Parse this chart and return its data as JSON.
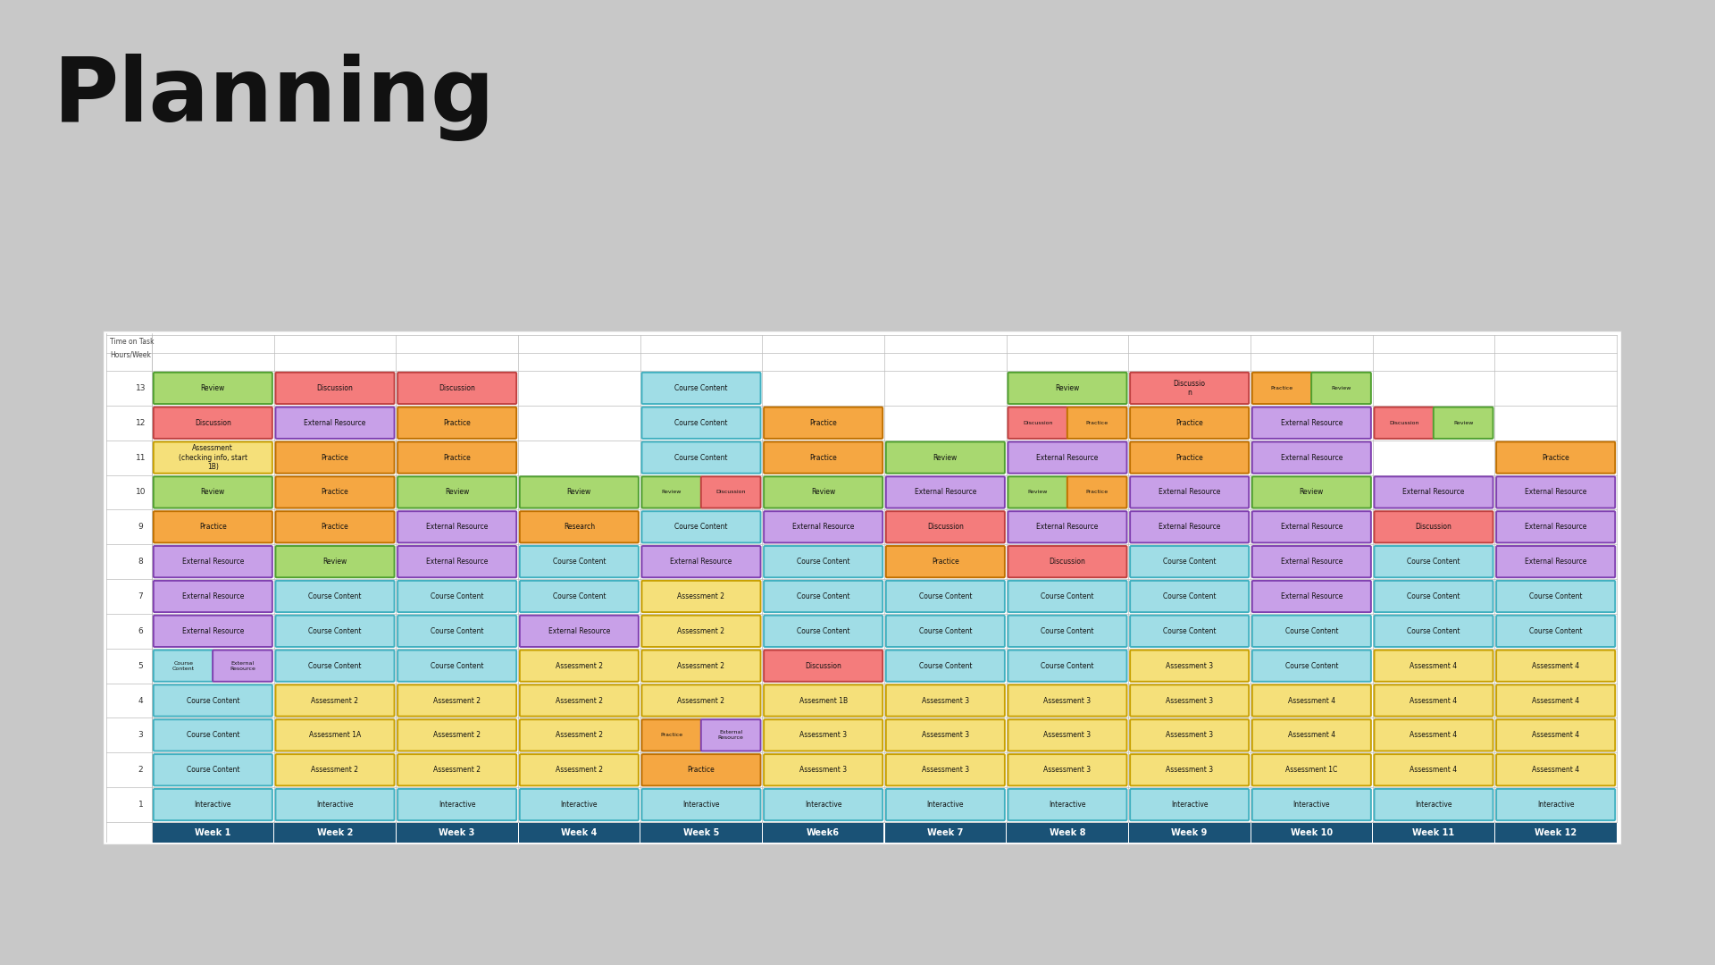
{
  "title": "Planning",
  "bg_color": "#c8c8c8",
  "card_color": "#ffffff",
  "weeks": [
    "Week 1",
    "Week 2",
    "Week 3",
    "Week 4",
    "Week 5",
    "Week6",
    "Week 7",
    "Week 8",
    "Week 9",
    "Week 10",
    "Week 11",
    "Week 12"
  ],
  "header_color": "#1a5276",
  "row_header_labels": [
    "Time on Task",
    "Hours/Week"
  ],
  "type_fill": {
    "Course Content": "#a0dde6",
    "Assessment": "#f5e07a",
    "Practice": "#f5a742",
    "Discussion": "#f47c7c",
    "Review": "#a8d870",
    "External Resource": "#c8a0e8",
    "Interactive": "#a0dde6",
    "Research": "#f5a742"
  },
  "type_edge": {
    "Course Content": "#40b0c0",
    "Assessment": "#c8a000",
    "Practice": "#c07000",
    "Discussion": "#c04040",
    "Review": "#50a030",
    "External Resource": "#8040b0",
    "Interactive": "#40b0c0",
    "Research": "#c07000"
  },
  "grid": [
    [
      [
        {
          "label": "Review",
          "type": "Review"
        }
      ],
      [
        {
          "label": "Discussion",
          "type": "Discussion"
        }
      ],
      [
        {
          "label": "Discussion",
          "type": "Discussion"
        }
      ],
      [],
      [
        {
          "label": "Course Content",
          "type": "Course Content"
        }
      ],
      [],
      [],
      [
        {
          "label": "Review",
          "type": "Review"
        }
      ],
      [
        {
          "label": "Discussio\nn",
          "type": "Discussion"
        }
      ],
      [
        {
          "label": "Practice",
          "type": "Practice"
        },
        {
          "label": "Review",
          "type": "Review"
        }
      ],
      [],
      []
    ],
    [
      [
        {
          "label": "Discussion",
          "type": "Discussion"
        }
      ],
      [
        {
          "label": "External Resource",
          "type": "External Resource"
        }
      ],
      [
        {
          "label": "Practice",
          "type": "Practice"
        }
      ],
      [],
      [
        {
          "label": "Course Content",
          "type": "Course Content"
        }
      ],
      [
        {
          "label": "Practice",
          "type": "Practice"
        }
      ],
      [],
      [
        {
          "label": "Discussion",
          "type": "Discussion"
        },
        {
          "label": "Practice",
          "type": "Practice"
        }
      ],
      [
        {
          "label": "Practice",
          "type": "Practice"
        }
      ],
      [
        {
          "label": "External Resource",
          "type": "External Resource"
        }
      ],
      [
        {
          "label": "Discussion",
          "type": "Discussion"
        },
        {
          "label": "Review",
          "type": "Review"
        }
      ],
      []
    ],
    [
      [
        {
          "label": "Assessment\n(checking info, start\n1B)",
          "type": "Assessment"
        }
      ],
      [
        {
          "label": "Practice",
          "type": "Practice"
        }
      ],
      [
        {
          "label": "Practice",
          "type": "Practice"
        }
      ],
      [],
      [
        {
          "label": "Course Content",
          "type": "Course Content"
        }
      ],
      [
        {
          "label": "Practice",
          "type": "Practice"
        }
      ],
      [
        {
          "label": "Review",
          "type": "Review"
        }
      ],
      [
        {
          "label": "External Resource",
          "type": "External Resource"
        }
      ],
      [
        {
          "label": "Practice",
          "type": "Practice"
        }
      ],
      [
        {
          "label": "External Resource",
          "type": "External Resource"
        }
      ],
      [],
      [
        {
          "label": "Practice",
          "type": "Practice"
        }
      ]
    ],
    [
      [
        {
          "label": "Review",
          "type": "Review"
        }
      ],
      [
        {
          "label": "Practice",
          "type": "Practice"
        }
      ],
      [
        {
          "label": "Review",
          "type": "Review"
        }
      ],
      [
        {
          "label": "Review",
          "type": "Review"
        }
      ],
      [
        {
          "label": "Review",
          "type": "Review"
        },
        {
          "label": "Discussion",
          "type": "Discussion"
        }
      ],
      [
        {
          "label": "Review",
          "type": "Review"
        }
      ],
      [
        {
          "label": "External Resource",
          "type": "External Resource"
        }
      ],
      [
        {
          "label": "Review",
          "type": "Review"
        },
        {
          "label": "Practice",
          "type": "Practice"
        }
      ],
      [
        {
          "label": "External Resource",
          "type": "External Resource"
        }
      ],
      [
        {
          "label": "Review",
          "type": "Review"
        }
      ],
      [
        {
          "label": "External Resource",
          "type": "External Resource"
        }
      ],
      [
        {
          "label": "External Resource",
          "type": "External Resource"
        }
      ]
    ],
    [
      [
        {
          "label": "Practice",
          "type": "Practice"
        }
      ],
      [
        {
          "label": "Practice",
          "type": "Practice"
        }
      ],
      [
        {
          "label": "External Resource",
          "type": "External Resource"
        }
      ],
      [
        {
          "label": "Research",
          "type": "Research"
        }
      ],
      [
        {
          "label": "Course Content",
          "type": "Course Content"
        }
      ],
      [
        {
          "label": "External Resource",
          "type": "External Resource"
        }
      ],
      [
        {
          "label": "Discussion",
          "type": "Discussion"
        }
      ],
      [
        {
          "label": "External Resource",
          "type": "External Resource"
        }
      ],
      [
        {
          "label": "External Resource",
          "type": "External Resource"
        }
      ],
      [
        {
          "label": "External Resource",
          "type": "External Resource"
        }
      ],
      [
        {
          "label": "Discussion",
          "type": "Discussion"
        }
      ],
      [
        {
          "label": "External Resource",
          "type": "External Resource"
        }
      ]
    ],
    [
      [
        {
          "label": "External Resource",
          "type": "External Resource"
        }
      ],
      [
        {
          "label": "Review",
          "type": "Review"
        }
      ],
      [
        {
          "label": "External Resource",
          "type": "External Resource"
        }
      ],
      [
        {
          "label": "Course Content",
          "type": "Course Content"
        }
      ],
      [
        {
          "label": "External Resource",
          "type": "External Resource"
        }
      ],
      [
        {
          "label": "Course Content",
          "type": "Course Content"
        }
      ],
      [
        {
          "label": "Practice",
          "type": "Practice"
        }
      ],
      [
        {
          "label": "Discussion",
          "type": "Discussion"
        }
      ],
      [
        {
          "label": "Course Content",
          "type": "Course Content"
        }
      ],
      [
        {
          "label": "External Resource",
          "type": "External Resource"
        }
      ],
      [
        {
          "label": "Course Content",
          "type": "Course Content"
        }
      ],
      [
        {
          "label": "External Resource",
          "type": "External Resource"
        }
      ]
    ],
    [
      [
        {
          "label": "External Resource",
          "type": "External Resource"
        }
      ],
      [
        {
          "label": "Course Content",
          "type": "Course Content"
        }
      ],
      [
        {
          "label": "Course Content",
          "type": "Course Content"
        }
      ],
      [
        {
          "label": "Course Content",
          "type": "Course Content"
        }
      ],
      [
        {
          "label": "Assessment 2",
          "type": "Assessment"
        }
      ],
      [
        {
          "label": "Course Content",
          "type": "Course Content"
        }
      ],
      [
        {
          "label": "Course Content",
          "type": "Course Content"
        }
      ],
      [
        {
          "label": "Course Content",
          "type": "Course Content"
        }
      ],
      [
        {
          "label": "Course Content",
          "type": "Course Content"
        }
      ],
      [
        {
          "label": "External Resource",
          "type": "External Resource"
        }
      ],
      [
        {
          "label": "Course Content",
          "type": "Course Content"
        }
      ],
      [
        {
          "label": "Course Content",
          "type": "Course Content"
        }
      ]
    ],
    [
      [
        {
          "label": "External Resource",
          "type": "External Resource"
        }
      ],
      [
        {
          "label": "Course Content",
          "type": "Course Content"
        }
      ],
      [
        {
          "label": "Course Content",
          "type": "Course Content"
        }
      ],
      [
        {
          "label": "External Resource",
          "type": "External Resource"
        }
      ],
      [
        {
          "label": "Assessment 2",
          "type": "Assessment"
        }
      ],
      [
        {
          "label": "Course Content",
          "type": "Course Content"
        }
      ],
      [
        {
          "label": "Course Content",
          "type": "Course Content"
        }
      ],
      [
        {
          "label": "Course Content",
          "type": "Course Content"
        }
      ],
      [
        {
          "label": "Course Content",
          "type": "Course Content"
        }
      ],
      [
        {
          "label": "Course Content",
          "type": "Course Content"
        }
      ],
      [
        {
          "label": "Course Content",
          "type": "Course Content"
        }
      ],
      [
        {
          "label": "Course Content",
          "type": "Course Content"
        }
      ]
    ],
    [
      [
        {
          "label": "Course\nContent",
          "type": "Course Content"
        },
        {
          "label": "External\nResource",
          "type": "External Resource"
        }
      ],
      [
        {
          "label": "Course Content",
          "type": "Course Content"
        }
      ],
      [
        {
          "label": "Course Content",
          "type": "Course Content"
        }
      ],
      [
        {
          "label": "Assessment 2",
          "type": "Assessment"
        }
      ],
      [
        {
          "label": "Assessment 2",
          "type": "Assessment"
        }
      ],
      [
        {
          "label": "Discussion",
          "type": "Discussion"
        }
      ],
      [
        {
          "label": "Course Content",
          "type": "Course Content"
        }
      ],
      [
        {
          "label": "Course Content",
          "type": "Course Content"
        }
      ],
      [
        {
          "label": "Assessment 3",
          "type": "Assessment"
        }
      ],
      [
        {
          "label": "Course Content",
          "type": "Course Content"
        }
      ],
      [
        {
          "label": "Assessment 4",
          "type": "Assessment"
        }
      ],
      [
        {
          "label": "Assessment 4",
          "type": "Assessment"
        }
      ]
    ],
    [
      [
        {
          "label": "Course Content",
          "type": "Course Content"
        }
      ],
      [
        {
          "label": "Assessment 2",
          "type": "Assessment"
        }
      ],
      [
        {
          "label": "Assessment 2",
          "type": "Assessment"
        }
      ],
      [
        {
          "label": "Assessment 2",
          "type": "Assessment"
        }
      ],
      [
        {
          "label": "Assessment 2",
          "type": "Assessment"
        }
      ],
      [
        {
          "label": "Assesment 1B",
          "type": "Assessment"
        }
      ],
      [
        {
          "label": "Assessment 3",
          "type": "Assessment"
        }
      ],
      [
        {
          "label": "Assessment 3",
          "type": "Assessment"
        }
      ],
      [
        {
          "label": "Assessment 3",
          "type": "Assessment"
        }
      ],
      [
        {
          "label": "Assessment 4",
          "type": "Assessment"
        }
      ],
      [
        {
          "label": "Assessment 4",
          "type": "Assessment"
        }
      ],
      [
        {
          "label": "Assessment 4",
          "type": "Assessment"
        }
      ]
    ],
    [
      [
        {
          "label": "Course Content",
          "type": "Course Content"
        }
      ],
      [
        {
          "label": "Assessment 1A",
          "type": "Assessment"
        }
      ],
      [
        {
          "label": "Assessment 2",
          "type": "Assessment"
        }
      ],
      [
        {
          "label": "Assessment 2",
          "type": "Assessment"
        }
      ],
      [
        {
          "label": "Practice",
          "type": "Practice"
        },
        {
          "label": "External\nResource",
          "type": "External Resource"
        }
      ],
      [
        {
          "label": "Assessment 3",
          "type": "Assessment"
        }
      ],
      [
        {
          "label": "Assessment 3",
          "type": "Assessment"
        }
      ],
      [
        {
          "label": "Assessment 3",
          "type": "Assessment"
        }
      ],
      [
        {
          "label": "Assessment 3",
          "type": "Assessment"
        }
      ],
      [
        {
          "label": "Assessment 4",
          "type": "Assessment"
        }
      ],
      [
        {
          "label": "Assessment 4",
          "type": "Assessment"
        }
      ],
      [
        {
          "label": "Assessment 4",
          "type": "Assessment"
        }
      ]
    ],
    [
      [
        {
          "label": "Course Content",
          "type": "Course Content"
        }
      ],
      [
        {
          "label": "Assessment 2",
          "type": "Assessment"
        }
      ],
      [
        {
          "label": "Assessment 2",
          "type": "Assessment"
        }
      ],
      [
        {
          "label": "Assessment 2",
          "type": "Assessment"
        }
      ],
      [
        {
          "label": "Practice",
          "type": "Practice"
        }
      ],
      [
        {
          "label": "Assessment 3",
          "type": "Assessment"
        }
      ],
      [
        {
          "label": "Assessment 3",
          "type": "Assessment"
        }
      ],
      [
        {
          "label": "Assessment 3",
          "type": "Assessment"
        }
      ],
      [
        {
          "label": "Assessment 3",
          "type": "Assessment"
        }
      ],
      [
        {
          "label": "Assessment 1C",
          "type": "Assessment"
        }
      ],
      [
        {
          "label": "Assessment 4",
          "type": "Assessment"
        }
      ],
      [
        {
          "label": "Assessment 4",
          "type": "Assessment"
        }
      ]
    ],
    [
      [
        {
          "label": "Interactive",
          "type": "Interactive"
        }
      ],
      [
        {
          "label": "Interactive",
          "type": "Interactive"
        }
      ],
      [
        {
          "label": "Interactive",
          "type": "Interactive"
        }
      ],
      [
        {
          "label": "Interactive",
          "type": "Interactive"
        }
      ],
      [
        {
          "label": "Interactive",
          "type": "Interactive"
        }
      ],
      [
        {
          "label": "Interactive",
          "type": "Interactive"
        }
      ],
      [
        {
          "label": "Interactive",
          "type": "Interactive"
        }
      ],
      [
        {
          "label": "Interactive",
          "type": "Interactive"
        }
      ],
      [
        {
          "label": "Interactive",
          "type": "Interactive"
        }
      ],
      [
        {
          "label": "Interactive",
          "type": "Interactive"
        }
      ],
      [
        {
          "label": "Interactive",
          "type": "Interactive"
        }
      ],
      [
        {
          "label": "Interactive",
          "type": "Interactive"
        }
      ]
    ]
  ]
}
